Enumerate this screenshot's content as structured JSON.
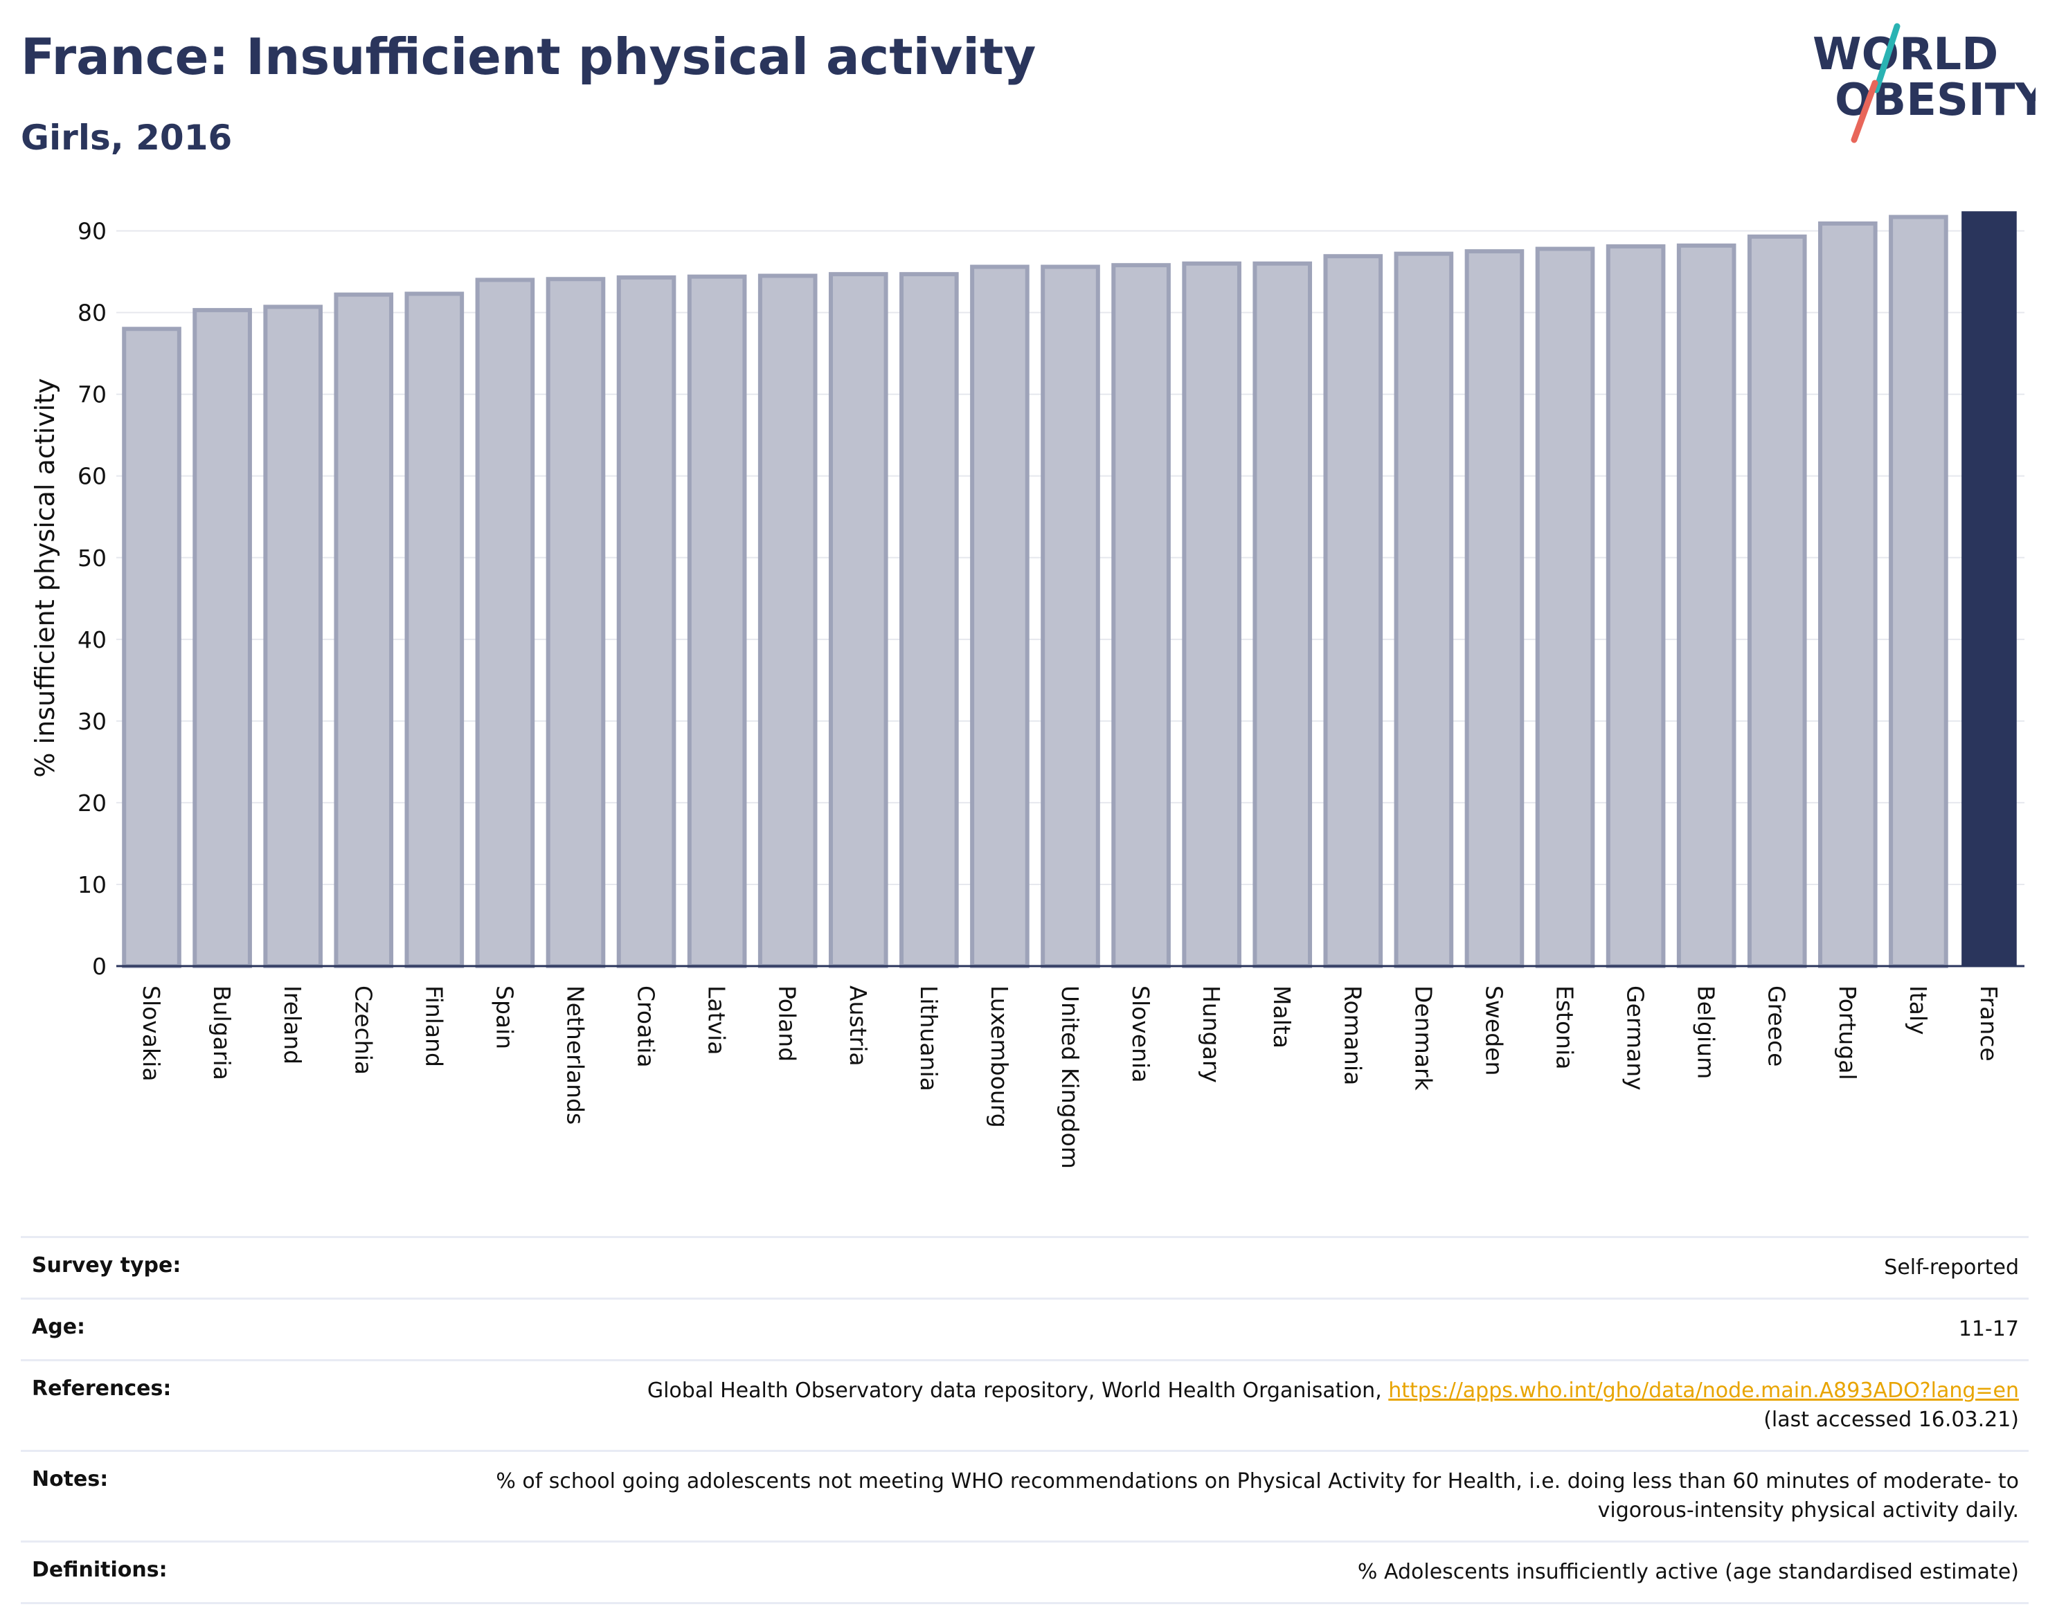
{
  "title": "France: Insufficient physical activity",
  "subtitle": "Girls, 2016",
  "logo": {
    "line1": "WORLD",
    "line2": "OBESITY"
  },
  "colors": {
    "highlight": "#2a355c",
    "bar": "#bec1cf",
    "bar_border": "#9ea3b9",
    "text_dark": "#2a355c",
    "link": "#e8a400",
    "logo_slash_teal": "#2ab3b3",
    "logo_slash_red": "#e8665a"
  },
  "chart_data": {
    "type": "bar",
    "title": "France: Insufficient physical activity",
    "subtitle": "Girls, 2016",
    "xlabel": "",
    "ylabel": "% insufficient physical activity",
    "ylim": [
      0,
      92
    ],
    "yticks": [
      0,
      10,
      20,
      30,
      40,
      50,
      60,
      70,
      80,
      90
    ],
    "grid": true,
    "highlight_category": "France",
    "categories": [
      "Slovakia",
      "Bulgaria",
      "Ireland",
      "Czechia",
      "Finland",
      "Spain",
      "Netherlands",
      "Croatia",
      "Latvia",
      "Poland",
      "Austria",
      "Lithuania",
      "Luxembourg",
      "United Kingdom",
      "Slovenia",
      "Hungary",
      "Malta",
      "Romania",
      "Denmark",
      "Sweden",
      "Estonia",
      "Germany",
      "Belgium",
      "Greece",
      "Portugal",
      "Italy",
      "France"
    ],
    "values": [
      78.0,
      80.3,
      80.7,
      82.2,
      82.3,
      84.0,
      84.1,
      84.3,
      84.4,
      84.5,
      84.7,
      84.7,
      85.6,
      85.6,
      85.8,
      86.0,
      86.0,
      86.9,
      87.2,
      87.5,
      87.8,
      88.1,
      88.2,
      89.3,
      90.9,
      91.7,
      92.4
    ]
  },
  "info": [
    {
      "label": "Survey type:",
      "value": "Self-reported"
    },
    {
      "label": "Age:",
      "value": "11-17"
    },
    {
      "label": "References:",
      "value": "Global Health Observatory data repository, World Health Organisation, ",
      "link": "https://apps.who.int/gho/data/node.main.A893ADO?lang=en",
      "value2": "(last accessed 16.03.21)"
    },
    {
      "label": "Notes:",
      "value": "% of school going adolescents not meeting WHO recommendations on Physical Activity for Health, i.e. doing less than 60 minutes of moderate- to vigorous-intensity physical activity daily."
    },
    {
      "label": "Definitions:",
      "value": "% Adolescents insufficiently active (age standardised estimate)"
    }
  ]
}
